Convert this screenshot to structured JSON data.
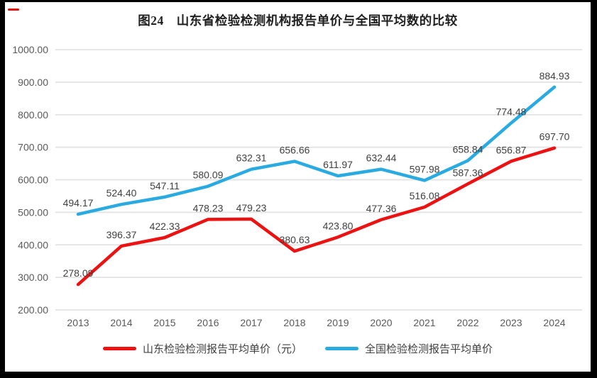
{
  "title": "图24　山东省检验检测机构报告单价与全国平均数的比较",
  "chart_data": {
    "type": "line",
    "categories": [
      "2013",
      "2014",
      "2015",
      "2016",
      "2017",
      "2018",
      "2019",
      "2020",
      "2021",
      "2022",
      "2023",
      "2024"
    ],
    "series": [
      {
        "name": "山东检验检测报告平均单价（元）",
        "color": "#ED1111",
        "values": [
          278.09,
          396.37,
          422.33,
          478.23,
          479.23,
          380.63,
          423.8,
          477.36,
          516.08,
          587.36,
          656.87,
          697.7
        ]
      },
      {
        "name": "全国检验检测报告平均单价",
        "color": "#29ABE2",
        "values": [
          494.17,
          524.4,
          547.11,
          580.09,
          632.31,
          656.66,
          611.97,
          632.44,
          597.98,
          658.84,
          774.48,
          884.93
        ]
      }
    ],
    "ylim": [
      200,
      1000
    ],
    "ytick_step": 100,
    "ytick_labels": [
      "200.00",
      "300.00",
      "400.00",
      "500.00",
      "600.00",
      "700.00",
      "800.00",
      "900.00",
      "1000.00"
    ],
    "grid": true,
    "data_labels": true,
    "legend_position": "bottom",
    "xlabel": "",
    "ylabel": ""
  },
  "colors": {
    "frame": "#000000",
    "background": "#FFFFFF",
    "grid": "#E2E2E2",
    "axis_text": "#595959",
    "data_label_text": "#404040",
    "title_text": "#1F1F1F",
    "corner_mark": "#E8100C"
  }
}
